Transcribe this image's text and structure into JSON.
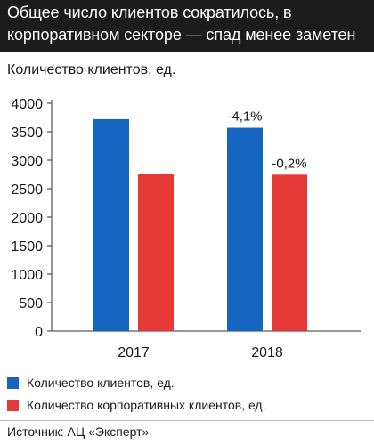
{
  "header": {
    "title_line1": "Общее число клиентов сократилось, в",
    "title_line2": "корпоративном секторе — спад менее заметен"
  },
  "chart_data": {
    "type": "bar",
    "ylabel": "Количество клиентов, ед.",
    "categories": [
      "2017",
      "2018"
    ],
    "series": [
      {
        "name": "Количество клиентов, ед.",
        "color": "#1565c0",
        "values": [
          3720,
          3570
        ],
        "labels": [
          "",
          "-4,1%"
        ]
      },
      {
        "name": "Количество корпоративных клиентов, ед.",
        "color": "#e53935",
        "values": [
          2750,
          2745
        ],
        "labels": [
          "",
          "-0,2%"
        ]
      }
    ],
    "ylim": [
      0,
      4000
    ],
    "yticks": [
      0,
      500,
      1000,
      1500,
      2000,
      2500,
      3000,
      3500,
      4000
    ],
    "grid": false,
    "legend_position": "bottom"
  },
  "source": "Источник: АЦ «Эксперт»"
}
